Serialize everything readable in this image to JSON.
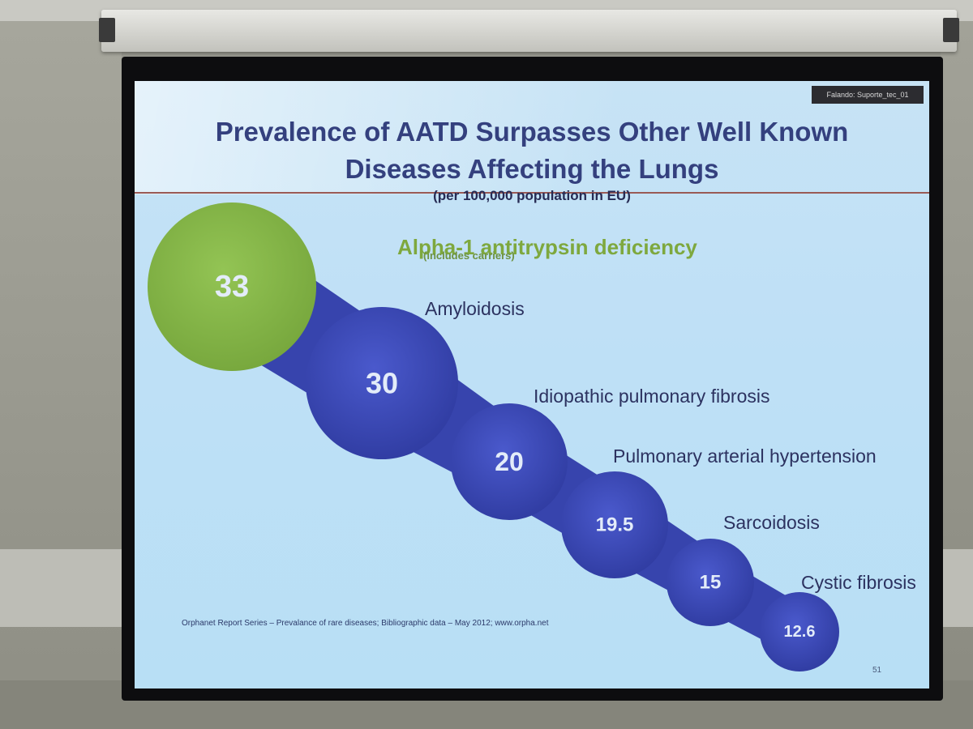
{
  "slide": {
    "presenter_tag": "Falando: Suporte_tec_01",
    "title_line1": "Prevalence of AATD Surpasses Other Well Known",
    "title_line2": "Diseases Affecting the Lungs",
    "subtitle": "(per 100,000 population in EU)",
    "highlight_label": "Alpha-1 antitrypsin deficiency",
    "highlight_note": "(includes carriers)",
    "citation": "Orphanet Report Series – Prevalance of rare diseases; Bibliographic data – May 2012; www.orpha.net",
    "page_number": "51"
  },
  "colors": {
    "highlight_bubble": "#89b94a",
    "bubble": "#3b48b8",
    "connector": "#3744ad",
    "title_text": "#34407e",
    "highlight_text": "#7ea83e"
  },
  "bubbles": [
    {
      "name": "Alpha-1 antitrypsin deficiency",
      "value": 33,
      "value_label": "33",
      "highlight": true
    },
    {
      "name": "Amyloidosis",
      "value": 30,
      "value_label": "30",
      "highlight": false
    },
    {
      "name": "Idiopathic pulmonary fibrosis",
      "value": 20,
      "value_label": "20",
      "highlight": false
    },
    {
      "name": "Pulmonary arterial hypertension",
      "value": 19.5,
      "value_label": "19.5",
      "highlight": false
    },
    {
      "name": "Sarcoidosis",
      "value": 15,
      "value_label": "15",
      "highlight": false
    },
    {
      "name": "Cystic fibrosis",
      "value": 12.6,
      "value_label": "12.6",
      "highlight": false
    }
  ]
}
